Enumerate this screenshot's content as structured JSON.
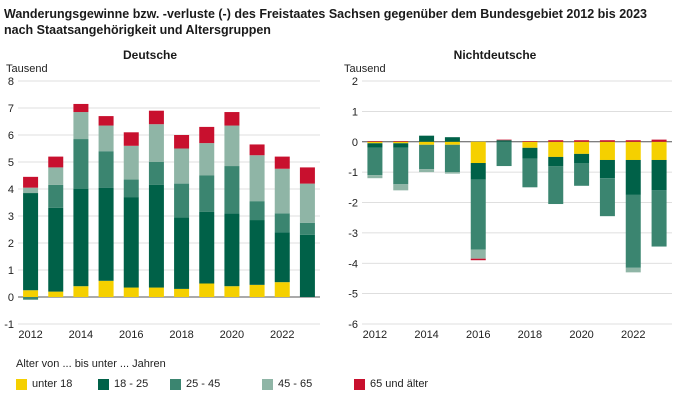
{
  "title_line1": "Wanderungsgewinne bzw. -verluste (-) des Freistaates Sachsen gegenüber dem Bundesgebiet 2012 bis 2023",
  "title_line2": "nach Staatsangehörigkeit und Altersgruppen",
  "legend_title": "Alter von ... bis unter ... Jahren",
  "colors": {
    "unter 18": "#f5d000",
    "18 - 25": "#006148",
    "25 - 45": "#3b8570",
    "45 - 65": "#8fb5a6",
    "65 und älter": "#c8102e",
    "axis": "#666666",
    "grid": "#cccccc"
  },
  "legend": [
    {
      "label": "unter 18"
    },
    {
      "label": "18 - 25"
    },
    {
      "label": "25 - 45"
    },
    {
      "label": "45 - 65"
    },
    {
      "label": "65 und älter"
    }
  ],
  "chart_data": [
    {
      "type": "bar",
      "stacked": true,
      "title": "Deutsche",
      "ylabel": "Tausend",
      "ylim": [
        -1,
        8
      ],
      "yticks": [
        -1,
        0,
        1,
        2,
        3,
        4,
        5,
        6,
        7,
        8
      ],
      "categories": [
        "2012",
        "2013",
        "2014",
        "2015",
        "2016",
        "2017",
        "2018",
        "2019",
        "2020",
        "2021",
        "2022",
        "2023"
      ],
      "xtick_labels": [
        "2012",
        "2014",
        "2016",
        "2018",
        "2020",
        "2022"
      ],
      "series": [
        {
          "name": "unter 18",
          "values": [
            0.25,
            0.2,
            0.4,
            0.6,
            0.35,
            0.35,
            0.3,
            0.5,
            0.4,
            0.45,
            0.55,
            0.0
          ]
        },
        {
          "name": "18 - 25",
          "values": [
            3.6,
            3.1,
            3.6,
            3.45,
            3.35,
            3.8,
            2.65,
            2.65,
            2.7,
            2.4,
            1.85,
            2.3
          ]
        },
        {
          "name": "25 - 45",
          "values": [
            -0.1,
            0.85,
            1.85,
            1.35,
            0.65,
            0.85,
            1.25,
            1.35,
            1.75,
            0.7,
            0.7,
            0.45
          ]
        },
        {
          "name": "45 - 65",
          "values": [
            0.2,
            0.65,
            1.0,
            0.95,
            1.25,
            1.4,
            1.3,
            1.2,
            1.5,
            1.7,
            1.65,
            1.45
          ]
        },
        {
          "name": "65 und älter",
          "values": [
            0.4,
            0.4,
            0.3,
            0.35,
            0.5,
            0.5,
            0.5,
            0.6,
            0.5,
            0.4,
            0.45,
            0.6
          ]
        }
      ]
    },
    {
      "type": "bar",
      "stacked": true,
      "title": "Nichtdeutsche",
      "ylabel": "Tausend",
      "ylim": [
        -6,
        2
      ],
      "yticks": [
        -6,
        -5,
        -4,
        -3,
        -2,
        -1,
        0,
        1,
        2
      ],
      "categories": [
        "2012",
        "2013",
        "2014",
        "2015",
        "2016",
        "2017",
        "2018",
        "2019",
        "2020",
        "2021",
        "2022",
        "2023"
      ],
      "xtick_labels": [
        "2012",
        "2014",
        "2016",
        "2018",
        "2020",
        "2022"
      ],
      "series": [
        {
          "name": "unter 18",
          "values": [
            -0.05,
            -0.05,
            -0.1,
            -0.1,
            -0.7,
            0.0,
            -0.2,
            -0.5,
            -0.4,
            -0.6,
            -0.6,
            -0.6
          ]
        },
        {
          "name": "18 - 25",
          "values": [
            -0.15,
            -0.15,
            0.2,
            0.15,
            -0.55,
            0.05,
            -0.35,
            -0.3,
            -0.3,
            -0.6,
            -1.15,
            -1.0
          ]
        },
        {
          "name": "25 - 45",
          "values": [
            -0.9,
            -1.2,
            -0.8,
            -0.9,
            -2.3,
            -0.8,
            -0.95,
            -1.25,
            -0.75,
            -1.25,
            -2.4,
            -1.85
          ]
        },
        {
          "name": "45 - 65",
          "values": [
            -0.1,
            -0.2,
            -0.1,
            -0.05,
            -0.3,
            0.0,
            0.0,
            0.0,
            0.0,
            0.0,
            -0.15,
            0.0
          ]
        },
        {
          "name": "65 und älter",
          "values": [
            0.02,
            0.02,
            0.0,
            0.0,
            -0.05,
            0.02,
            0.02,
            0.05,
            0.05,
            0.05,
            0.05,
            0.07
          ]
        }
      ]
    }
  ]
}
